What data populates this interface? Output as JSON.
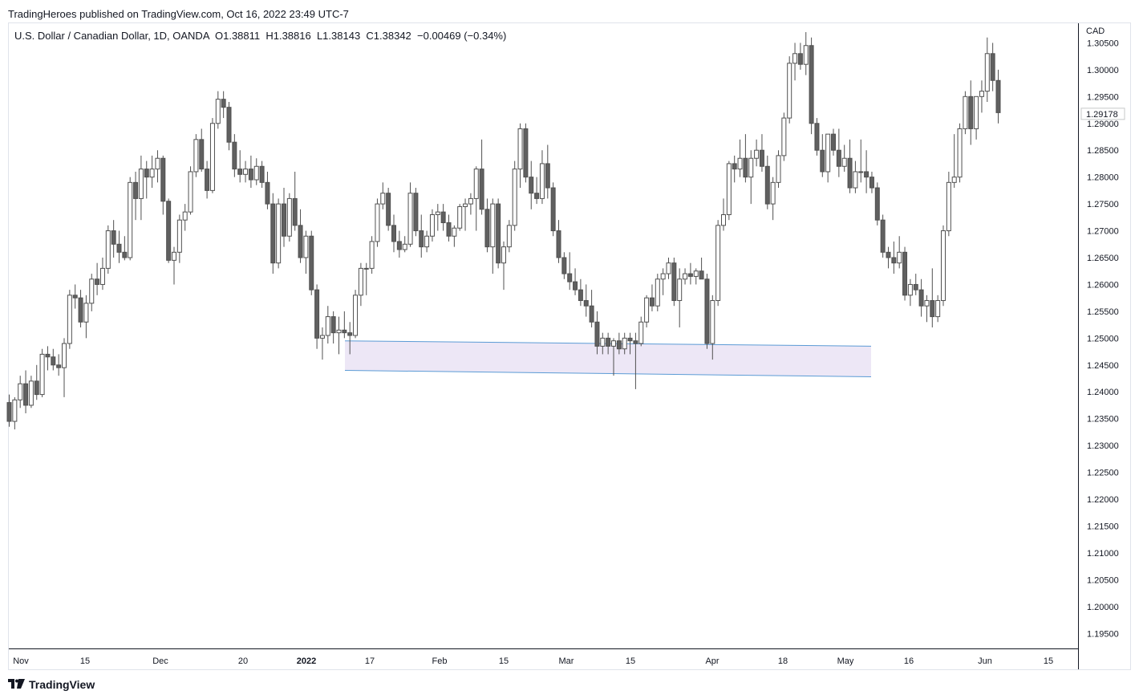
{
  "header": {
    "published": "TradingHeroes published on TradingView.com, Oct 16, 2022 23:49 UTC-7",
    "legend": "U.S. Dollar / Canadian Dollar, 1D, OANDA  O1.38811  H1.38816  L1.38143  C1.38342  −0.00469 (−0.34%)",
    "currency": "CAD"
  },
  "footer": {
    "brand": "TradingView",
    "logo_icon": "tradingview-logo-icon"
  },
  "colors": {
    "up": "#ffffff",
    "down": "#606060",
    "wick": "#505050",
    "zone_fill": "#ede7f6",
    "zone_line": "#5b9bd5",
    "price_label": "#9aa0a6"
  },
  "chart_data": {
    "type": "candlestick",
    "ylim": [
      1.1925,
      1.3085
    ],
    "y_ticks": [
      "1.30500",
      "1.30000",
      "1.29500",
      "1.29000",
      "1.28500",
      "1.28000",
      "1.27500",
      "1.27000",
      "1.26500",
      "1.26000",
      "1.25500",
      "1.25000",
      "1.24500",
      "1.24000",
      "1.23500",
      "1.23000",
      "1.22500",
      "1.22000",
      "1.21500",
      "1.21000",
      "1.20500",
      "1.20000",
      "1.19500"
    ],
    "x_ticks": [
      "Nov",
      "15",
      "Dec",
      "20",
      "2022",
      "17",
      "Feb",
      "15",
      "Mar",
      "15",
      "Apr",
      "18",
      "May",
      "16",
      "Jun",
      "15"
    ],
    "bold_x_tick": "2022",
    "last_price_label": "1.29178",
    "last_price": 1.29178,
    "zone": {
      "start": "2022-01-12",
      "end": "2022-05-09",
      "top_start": 1.2495,
      "top_end": 1.2485,
      "bottom_start": 1.244,
      "bottom_end": 1.2428
    },
    "ohlc": [
      [
        1.238,
        1.2395,
        1.2335,
        1.2345
      ],
      [
        1.2345,
        1.239,
        1.233,
        1.2385
      ],
      [
        1.2385,
        1.243,
        1.237,
        1.2415
      ],
      [
        1.2415,
        1.244,
        1.236,
        1.2375
      ],
      [
        1.2375,
        1.243,
        1.237,
        1.242
      ],
      [
        1.242,
        1.245,
        1.2385,
        1.2395
      ],
      [
        1.2395,
        1.248,
        1.239,
        1.247
      ],
      [
        1.247,
        1.2485,
        1.244,
        1.2465
      ],
      [
        1.2465,
        1.248,
        1.244,
        1.245
      ],
      [
        1.245,
        1.247,
        1.243,
        1.2445
      ],
      [
        1.2445,
        1.25,
        1.239,
        1.249
      ],
      [
        1.249,
        1.259,
        1.248,
        1.258
      ],
      [
        1.258,
        1.26,
        1.2555,
        1.2575
      ],
      [
        1.2575,
        1.259,
        1.252,
        1.253
      ],
      [
        1.253,
        1.258,
        1.25,
        1.2565
      ],
      [
        1.2565,
        1.262,
        1.255,
        1.261
      ],
      [
        1.261,
        1.264,
        1.258,
        1.26
      ],
      [
        1.26,
        1.265,
        1.259,
        1.263
      ],
      [
        1.263,
        1.271,
        1.262,
        1.27
      ],
      [
        1.27,
        1.272,
        1.265,
        1.2675
      ],
      [
        1.2675,
        1.27,
        1.264,
        1.266
      ],
      [
        1.266,
        1.269,
        1.2645,
        1.265
      ],
      [
        1.265,
        1.28,
        1.2645,
        1.279
      ],
      [
        1.279,
        1.281,
        1.272,
        1.276
      ],
      [
        1.276,
        1.284,
        1.272,
        1.2815
      ],
      [
        1.2815,
        1.283,
        1.276,
        1.28
      ],
      [
        1.28,
        1.284,
        1.278,
        1.2815
      ],
      [
        1.2815,
        1.285,
        1.279,
        1.2835
      ],
      [
        1.2835,
        1.284,
        1.273,
        1.2755
      ],
      [
        1.2755,
        1.276,
        1.264,
        1.2645
      ],
      [
        1.2645,
        1.267,
        1.26,
        1.266
      ],
      [
        1.266,
        1.273,
        1.264,
        1.272
      ],
      [
        1.272,
        1.275,
        1.27,
        1.2735
      ],
      [
        1.2735,
        1.282,
        1.273,
        1.281
      ],
      [
        1.281,
        1.288,
        1.28,
        1.287
      ],
      [
        1.287,
        1.289,
        1.281,
        1.2815
      ],
      [
        1.2815,
        1.283,
        1.276,
        1.2775
      ],
      [
        1.2775,
        1.291,
        1.277,
        1.29
      ],
      [
        1.29,
        1.296,
        1.289,
        1.2945
      ],
      [
        1.2945,
        1.296,
        1.291,
        1.293
      ],
      [
        1.293,
        1.294,
        1.285,
        1.2865
      ],
      [
        1.2865,
        1.288,
        1.28,
        1.2815
      ],
      [
        1.2815,
        1.285,
        1.279,
        1.2805
      ],
      [
        1.2805,
        1.283,
        1.279,
        1.2815
      ],
      [
        1.2815,
        1.284,
        1.278,
        1.2795
      ],
      [
        1.2795,
        1.2835,
        1.2785,
        1.282
      ],
      [
        1.282,
        1.283,
        1.278,
        1.279
      ],
      [
        1.279,
        1.281,
        1.274,
        1.275
      ],
      [
        1.275,
        1.277,
        1.262,
        1.264
      ],
      [
        1.264,
        1.276,
        1.263,
        1.275
      ],
      [
        1.275,
        1.278,
        1.267,
        1.269
      ],
      [
        1.269,
        1.277,
        1.268,
        1.276
      ],
      [
        1.276,
        1.281,
        1.27,
        1.271
      ],
      [
        1.271,
        1.274,
        1.264,
        1.265
      ],
      [
        1.265,
        1.27,
        1.262,
        1.269
      ],
      [
        1.269,
        1.27,
        1.258,
        1.259
      ],
      [
        1.259,
        1.26,
        1.248,
        1.25
      ],
      [
        1.25,
        1.252,
        1.246,
        1.2505
      ],
      [
        1.2505,
        1.256,
        1.249,
        1.254
      ],
      [
        1.254,
        1.255,
        1.249,
        1.251
      ],
      [
        1.251,
        1.254,
        1.247,
        1.2515
      ],
      [
        1.2515,
        1.255,
        1.25,
        1.251
      ],
      [
        1.251,
        1.253,
        1.247,
        1.2505
      ],
      [
        1.2505,
        1.259,
        1.25,
        1.258
      ],
      [
        1.258,
        1.264,
        1.256,
        1.263
      ],
      [
        1.263,
        1.264,
        1.258,
        1.263
      ],
      [
        1.263,
        1.269,
        1.262,
        1.268
      ],
      [
        1.268,
        1.276,
        1.267,
        1.275
      ],
      [
        1.275,
        1.279,
        1.274,
        1.277
      ],
      [
        1.277,
        1.278,
        1.27,
        1.271
      ],
      [
        1.271,
        1.273,
        1.266,
        1.268
      ],
      [
        1.268,
        1.27,
        1.265,
        1.2665
      ],
      [
        1.2665,
        1.269,
        1.266,
        1.2675
      ],
      [
        1.2675,
        1.279,
        1.267,
        1.277
      ],
      [
        1.277,
        1.278,
        1.269,
        1.27
      ],
      [
        1.27,
        1.273,
        1.265,
        1.267
      ],
      [
        1.267,
        1.27,
        1.266,
        1.269
      ],
      [
        1.269,
        1.274,
        1.268,
        1.273
      ],
      [
        1.273,
        1.275,
        1.27,
        1.2735
      ],
      [
        1.2735,
        1.275,
        1.27,
        1.2715
      ],
      [
        1.2715,
        1.273,
        1.268,
        1.269
      ],
      [
        1.269,
        1.271,
        1.267,
        1.2705
      ],
      [
        1.2705,
        1.275,
        1.27,
        1.2745
      ],
      [
        1.2745,
        1.276,
        1.27,
        1.275
      ],
      [
        1.275,
        1.277,
        1.273,
        1.276
      ],
      [
        1.276,
        1.282,
        1.27,
        1.2815
      ],
      [
        1.2815,
        1.287,
        1.273,
        1.274
      ],
      [
        1.274,
        1.276,
        1.266,
        1.267
      ],
      [
        1.267,
        1.276,
        1.262,
        1.275
      ],
      [
        1.275,
        1.276,
        1.263,
        1.264
      ],
      [
        1.264,
        1.268,
        1.259,
        1.267
      ],
      [
        1.267,
        1.272,
        1.266,
        1.271
      ],
      [
        1.271,
        1.283,
        1.27,
        1.2815
      ],
      [
        1.2815,
        1.29,
        1.278,
        1.289
      ],
      [
        1.289,
        1.29,
        1.279,
        1.28
      ],
      [
        1.28,
        1.283,
        1.274,
        1.277
      ],
      [
        1.277,
        1.28,
        1.275,
        1.276
      ],
      [
        1.276,
        1.285,
        1.275,
        1.2825
      ],
      [
        1.2825,
        1.286,
        1.276,
        1.278
      ],
      [
        1.278,
        1.279,
        1.269,
        1.27
      ],
      [
        1.27,
        1.272,
        1.264,
        1.265
      ],
      [
        1.265,
        1.266,
        1.261,
        1.262
      ],
      [
        1.262,
        1.266,
        1.259,
        1.2605
      ],
      [
        1.2605,
        1.263,
        1.258,
        1.259
      ],
      [
        1.259,
        1.261,
        1.256,
        1.257
      ],
      [
        1.257,
        1.26,
        1.254,
        1.256
      ],
      [
        1.256,
        1.259,
        1.252,
        1.253
      ],
      [
        1.253,
        1.255,
        1.247,
        1.2485
      ],
      [
        1.2485,
        1.251,
        1.247,
        1.25
      ],
      [
        1.25,
        1.251,
        1.247,
        1.2485
      ],
      [
        1.2485,
        1.25,
        1.243,
        1.2495
      ],
      [
        1.2495,
        1.251,
        1.247,
        1.248
      ],
      [
        1.248,
        1.251,
        1.247,
        1.25
      ],
      [
        1.25,
        1.251,
        1.247,
        1.2495
      ],
      [
        1.2495,
        1.251,
        1.2405,
        1.249
      ],
      [
        1.249,
        1.254,
        1.2485,
        1.253
      ],
      [
        1.253,
        1.258,
        1.252,
        1.2575
      ],
      [
        1.2575,
        1.26,
        1.255,
        1.256
      ],
      [
        1.256,
        1.262,
        1.255,
        1.261
      ],
      [
        1.261,
        1.263,
        1.258,
        1.262
      ],
      [
        1.262,
        1.265,
        1.261,
        1.264
      ],
      [
        1.264,
        1.265,
        1.256,
        1.257
      ],
      [
        1.257,
        1.263,
        1.252,
        1.261
      ],
      [
        1.261,
        1.263,
        1.26,
        1.262
      ],
      [
        1.262,
        1.264,
        1.26,
        1.2615
      ],
      [
        1.2615,
        1.263,
        1.26,
        1.2625
      ],
      [
        1.2625,
        1.265,
        1.261,
        1.261
      ],
      [
        1.261,
        1.262,
        1.248,
        1.249
      ],
      [
        1.249,
        1.258,
        1.246,
        1.257
      ],
      [
        1.257,
        1.272,
        1.256,
        1.271
      ],
      [
        1.271,
        1.276,
        1.27,
        1.273
      ],
      [
        1.273,
        1.283,
        1.272,
        1.2825
      ],
      [
        1.2825,
        1.284,
        1.279,
        1.2815
      ],
      [
        1.2815,
        1.287,
        1.28,
        1.2835
      ],
      [
        1.2835,
        1.288,
        1.279,
        1.28
      ],
      [
        1.28,
        1.285,
        1.275,
        1.2835
      ],
      [
        1.2835,
        1.287,
        1.282,
        1.285
      ],
      [
        1.285,
        1.288,
        1.281,
        1.282
      ],
      [
        1.282,
        1.284,
        1.274,
        1.275
      ],
      [
        1.275,
        1.28,
        1.272,
        1.279
      ],
      [
        1.279,
        1.285,
        1.278,
        1.284
      ],
      [
        1.284,
        1.292,
        1.283,
        1.291
      ],
      [
        1.291,
        1.3025,
        1.29,
        1.3012
      ],
      [
        1.3012,
        1.305,
        1.298,
        1.303
      ],
      [
        1.303,
        1.305,
        1.3,
        1.301
      ],
      [
        1.301,
        1.307,
        1.299,
        1.3045
      ],
      [
        1.3045,
        1.306,
        1.288,
        1.29
      ],
      [
        1.29,
        1.291,
        1.284,
        1.285
      ],
      [
        1.285,
        1.288,
        1.28,
        1.281
      ],
      [
        1.281,
        1.288,
        1.279,
        1.288
      ],
      [
        1.288,
        1.289,
        1.284,
        1.285
      ],
      [
        1.285,
        1.289,
        1.28,
        1.282
      ],
      [
        1.282,
        1.286,
        1.281,
        1.2835
      ],
      [
        1.2835,
        1.287,
        1.277,
        1.278
      ],
      [
        1.278,
        1.283,
        1.277,
        1.281
      ],
      [
        1.281,
        1.287,
        1.279,
        1.281
      ],
      [
        1.281,
        1.285,
        1.277,
        1.28
      ],
      [
        1.28,
        1.281,
        1.277,
        1.278
      ],
      [
        1.278,
        1.279,
        1.271,
        1.272
      ],
      [
        1.272,
        1.273,
        1.265,
        1.266
      ],
      [
        1.266,
        1.267,
        1.263,
        1.265
      ],
      [
        1.265,
        1.268,
        1.262,
        1.264
      ],
      [
        1.264,
        1.269,
        1.263,
        1.266
      ],
      [
        1.266,
        1.267,
        1.257,
        1.258
      ],
      [
        1.258,
        1.261,
        1.256,
        1.26
      ],
      [
        1.26,
        1.262,
        1.258,
        1.259
      ],
      [
        1.259,
        1.261,
        1.254,
        1.256
      ],
      [
        1.256,
        1.258,
        1.253,
        1.257
      ],
      [
        1.257,
        1.263,
        1.252,
        1.254
      ],
      [
        1.254,
        1.258,
        1.253,
        1.257
      ],
      [
        1.257,
        1.271,
        1.256,
        1.27
      ],
      [
        1.27,
        1.281,
        1.269,
        1.279
      ],
      [
        1.279,
        1.288,
        1.278,
        1.28
      ],
      [
        1.28,
        1.29,
        1.279,
        1.289
      ],
      [
        1.289,
        1.296,
        1.288,
        1.295
      ],
      [
        1.295,
        1.298,
        1.286,
        1.289
      ],
      [
        1.289,
        1.295,
        1.287,
        1.295
      ],
      [
        1.295,
        1.298,
        1.292,
        1.296
      ],
      [
        1.296,
        1.306,
        1.294,
        1.303
      ],
      [
        1.303,
        1.305,
        1.296,
        1.298
      ],
      [
        1.298,
        1.3,
        1.29,
        1.292
      ]
    ]
  }
}
